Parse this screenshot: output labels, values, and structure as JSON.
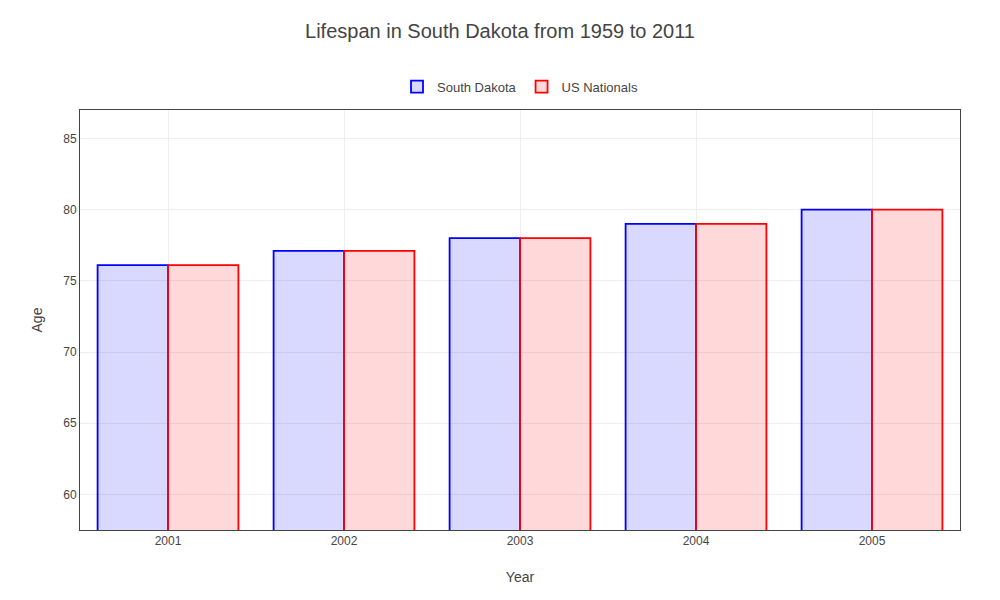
{
  "chart_data": {
    "type": "bar",
    "title": "Lifespan in South Dakota from 1959 to 2011",
    "x_label": "Year",
    "y_label": "Age",
    "categories": [
      2001,
      2002,
      2003,
      2004,
      2005
    ],
    "series": [
      {
        "name": "South Dakota",
        "color": "#0000ff",
        "values": [
          76.1,
          77.1,
          78.0,
          79.0,
          80.0
        ]
      },
      {
        "name": "US Nationals",
        "color": "#ff0000",
        "values": [
          76.1,
          77.1,
          78.0,
          79.0,
          80.0
        ]
      }
    ],
    "ylim": [
      57.5,
      87
    ],
    "yticks": [
      60,
      65,
      70,
      75,
      80,
      85
    ],
    "grid": true,
    "legend": "top"
  }
}
